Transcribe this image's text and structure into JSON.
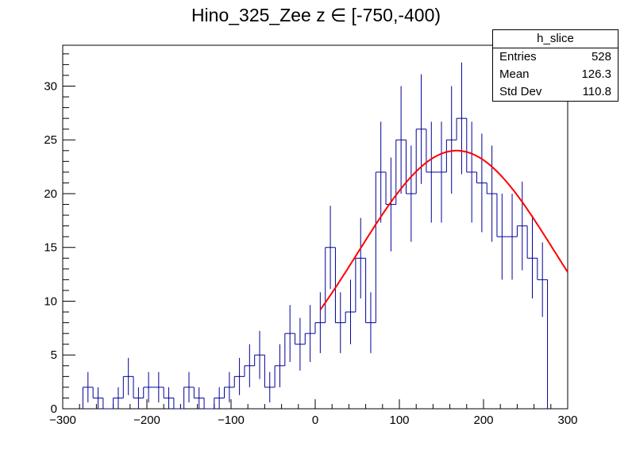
{
  "chart_data": {
    "type": "histogram",
    "title": "Hino_325_Zee z  ∈ [-750,-400)",
    "xlabel": "",
    "ylabel": "",
    "xlim": [
      -300,
      300
    ],
    "ylim": [
      0,
      33.8
    ],
    "xticks": [
      -300,
      -200,
      -100,
      0,
      100,
      200,
      300
    ],
    "yticks": [
      0,
      5,
      10,
      15,
      20,
      25,
      30
    ],
    "grid": false,
    "bin_width": 12,
    "bin_start": -276,
    "values": [
      2,
      1,
      0,
      1,
      3,
      1,
      2,
      2,
      1,
      0,
      2,
      1,
      0,
      1,
      2,
      3,
      4,
      5,
      2,
      4,
      7,
      6,
      7,
      8,
      15,
      8,
      9,
      14,
      8,
      22,
      19,
      25,
      20,
      26,
      22,
      22,
      25,
      27,
      22,
      21,
      20,
      16,
      16,
      17,
      14,
      12
    ],
    "hist_color": "#000099",
    "fit": {
      "color": "#ff0000",
      "x_range": [
        6,
        300
      ],
      "peak_x": 168,
      "peak_y": 24,
      "sigma": 117,
      "type": "gaussian"
    }
  },
  "stats": {
    "name": "h_slice",
    "rows": [
      {
        "label": "Entries",
        "value": "528"
      },
      {
        "label": "Mean",
        "value": "126.3"
      },
      {
        "label": "Std Dev",
        "value": "110.8"
      }
    ]
  }
}
